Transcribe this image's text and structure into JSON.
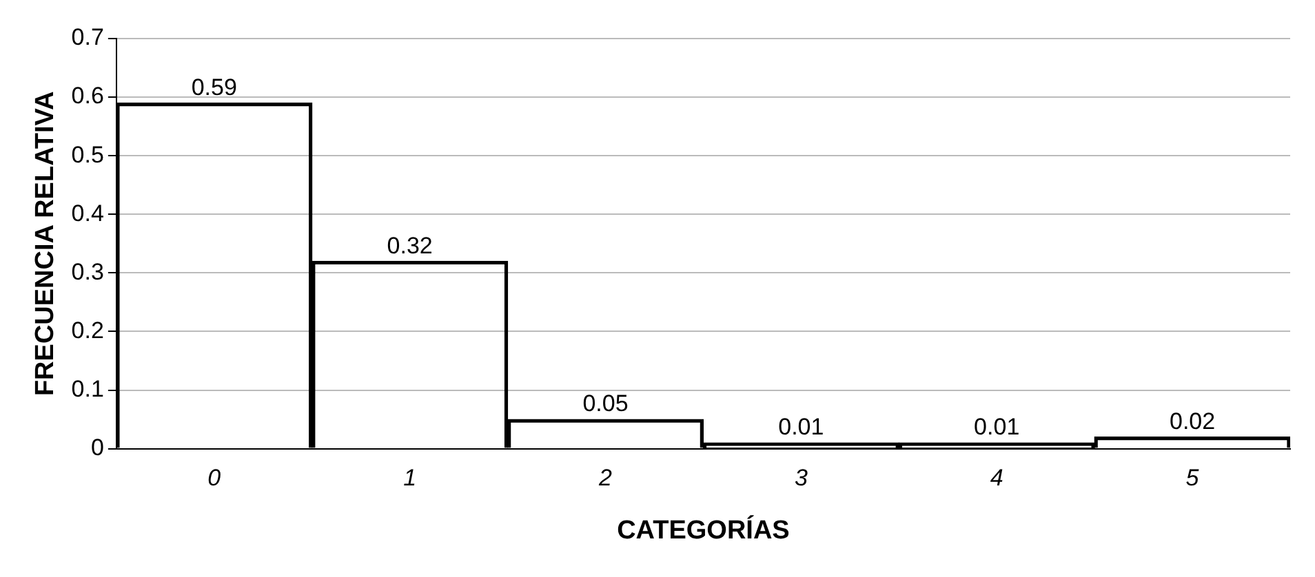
{
  "chart_data": {
    "type": "bar",
    "xlabel": "CATEGORÍAS",
    "ylabel": "FRECUENCIA RELATIVA",
    "categories": [
      "0",
      "1",
      "2",
      "3",
      "4",
      "5"
    ],
    "values": [
      0.59,
      0.32,
      0.05,
      0.01,
      0.01,
      0.02
    ],
    "color": "#000000",
    "ylim": [
      0,
      0.7
    ],
    "yticks": [
      0,
      0.1,
      0.2,
      0.3,
      0.4,
      0.5,
      0.6,
      0.7
    ],
    "grid": "y",
    "data_labels": true,
    "legend": false
  }
}
